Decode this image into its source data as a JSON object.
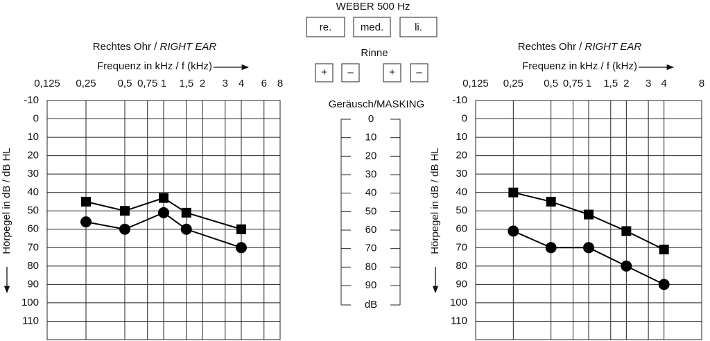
{
  "chart_data": [
    {
      "type": "line",
      "title": "Rechtes Ohr /",
      "title_italic": "RIGHT EAR",
      "xlabel": "Frequenz in kHz / f (kHz)",
      "ylabel": "Hörpegel in dB / dB HL",
      "xscale": "log",
      "xlim": [
        0.125,
        8
      ],
      "xticks": [
        {
          "value": 0.125,
          "label": "0,125"
        },
        {
          "value": 0.25,
          "label": "0,25"
        },
        {
          "value": 0.5,
          "label": "0,5"
        },
        {
          "value": 0.75,
          "label": "0,75"
        },
        1,
        {
          "value": 1.5,
          "label": "1,5"
        },
        2,
        3,
        4,
        6,
        8
      ],
      "ylim": [
        -10,
        120
      ],
      "invert_y": true,
      "yticks": [
        -10,
        0,
        10,
        20,
        30,
        40,
        50,
        60,
        70,
        80,
        90,
        100,
        110
      ],
      "grid": true,
      "x": [
        0.25,
        0.5,
        1,
        1.5,
        4
      ],
      "series": [
        {
          "color": "#000000",
          "marker": "square",
          "values": [
            45,
            50,
            43,
            51,
            60
          ]
        },
        {
          "color": "#000000",
          "marker": "circle",
          "values": [
            56,
            60,
            51,
            60,
            70
          ]
        }
      ]
    },
    {
      "type": "line",
      "title": "Rechtes Ohr /",
      "title_italic": "RIGHT EAR",
      "xlabel": "Frequenz in kHz / f (kHz)",
      "ylabel": "Hörpegel in dB / dB HL",
      "xscale": "log",
      "xlim": [
        0.125,
        8
      ],
      "xticks": [
        {
          "value": 0.125,
          "label": "0,125"
        },
        {
          "value": 0.25,
          "label": "0,25"
        },
        {
          "value": 0.5,
          "label": "0,5"
        },
        {
          "value": 0.75,
          "label": "0,75"
        },
        1,
        {
          "value": 1.5,
          "label": "1,5"
        },
        2,
        3,
        4,
        8
      ],
      "ylim": [
        -10,
        120
      ],
      "invert_y": true,
      "yticks": [
        -10,
        0,
        10,
        20,
        30,
        40,
        50,
        60,
        70,
        80,
        90,
        100,
        110
      ],
      "grid": true,
      "x": [
        0.25,
        0.5,
        1,
        2,
        4
      ],
      "series": [
        {
          "color": "#000000",
          "marker": "square",
          "values": [
            40,
            45,
            52,
            61,
            71
          ]
        },
        {
          "color": "#000000",
          "marker": "circle",
          "values": [
            61,
            70,
            70,
            80,
            90
          ]
        }
      ]
    }
  ],
  "weber": {
    "title": "WEBER 500 Hz",
    "buttons": [
      "re.",
      "med.",
      "li."
    ]
  },
  "rinne": {
    "title": "Rinne",
    "buttons": [
      "+",
      "–",
      "+",
      "–"
    ]
  },
  "masking": {
    "title": "Geräusch/MASKING",
    "ticks": [
      0,
      10,
      20,
      30,
      40,
      50,
      60,
      70,
      80,
      90
    ],
    "unit": "dB"
  }
}
